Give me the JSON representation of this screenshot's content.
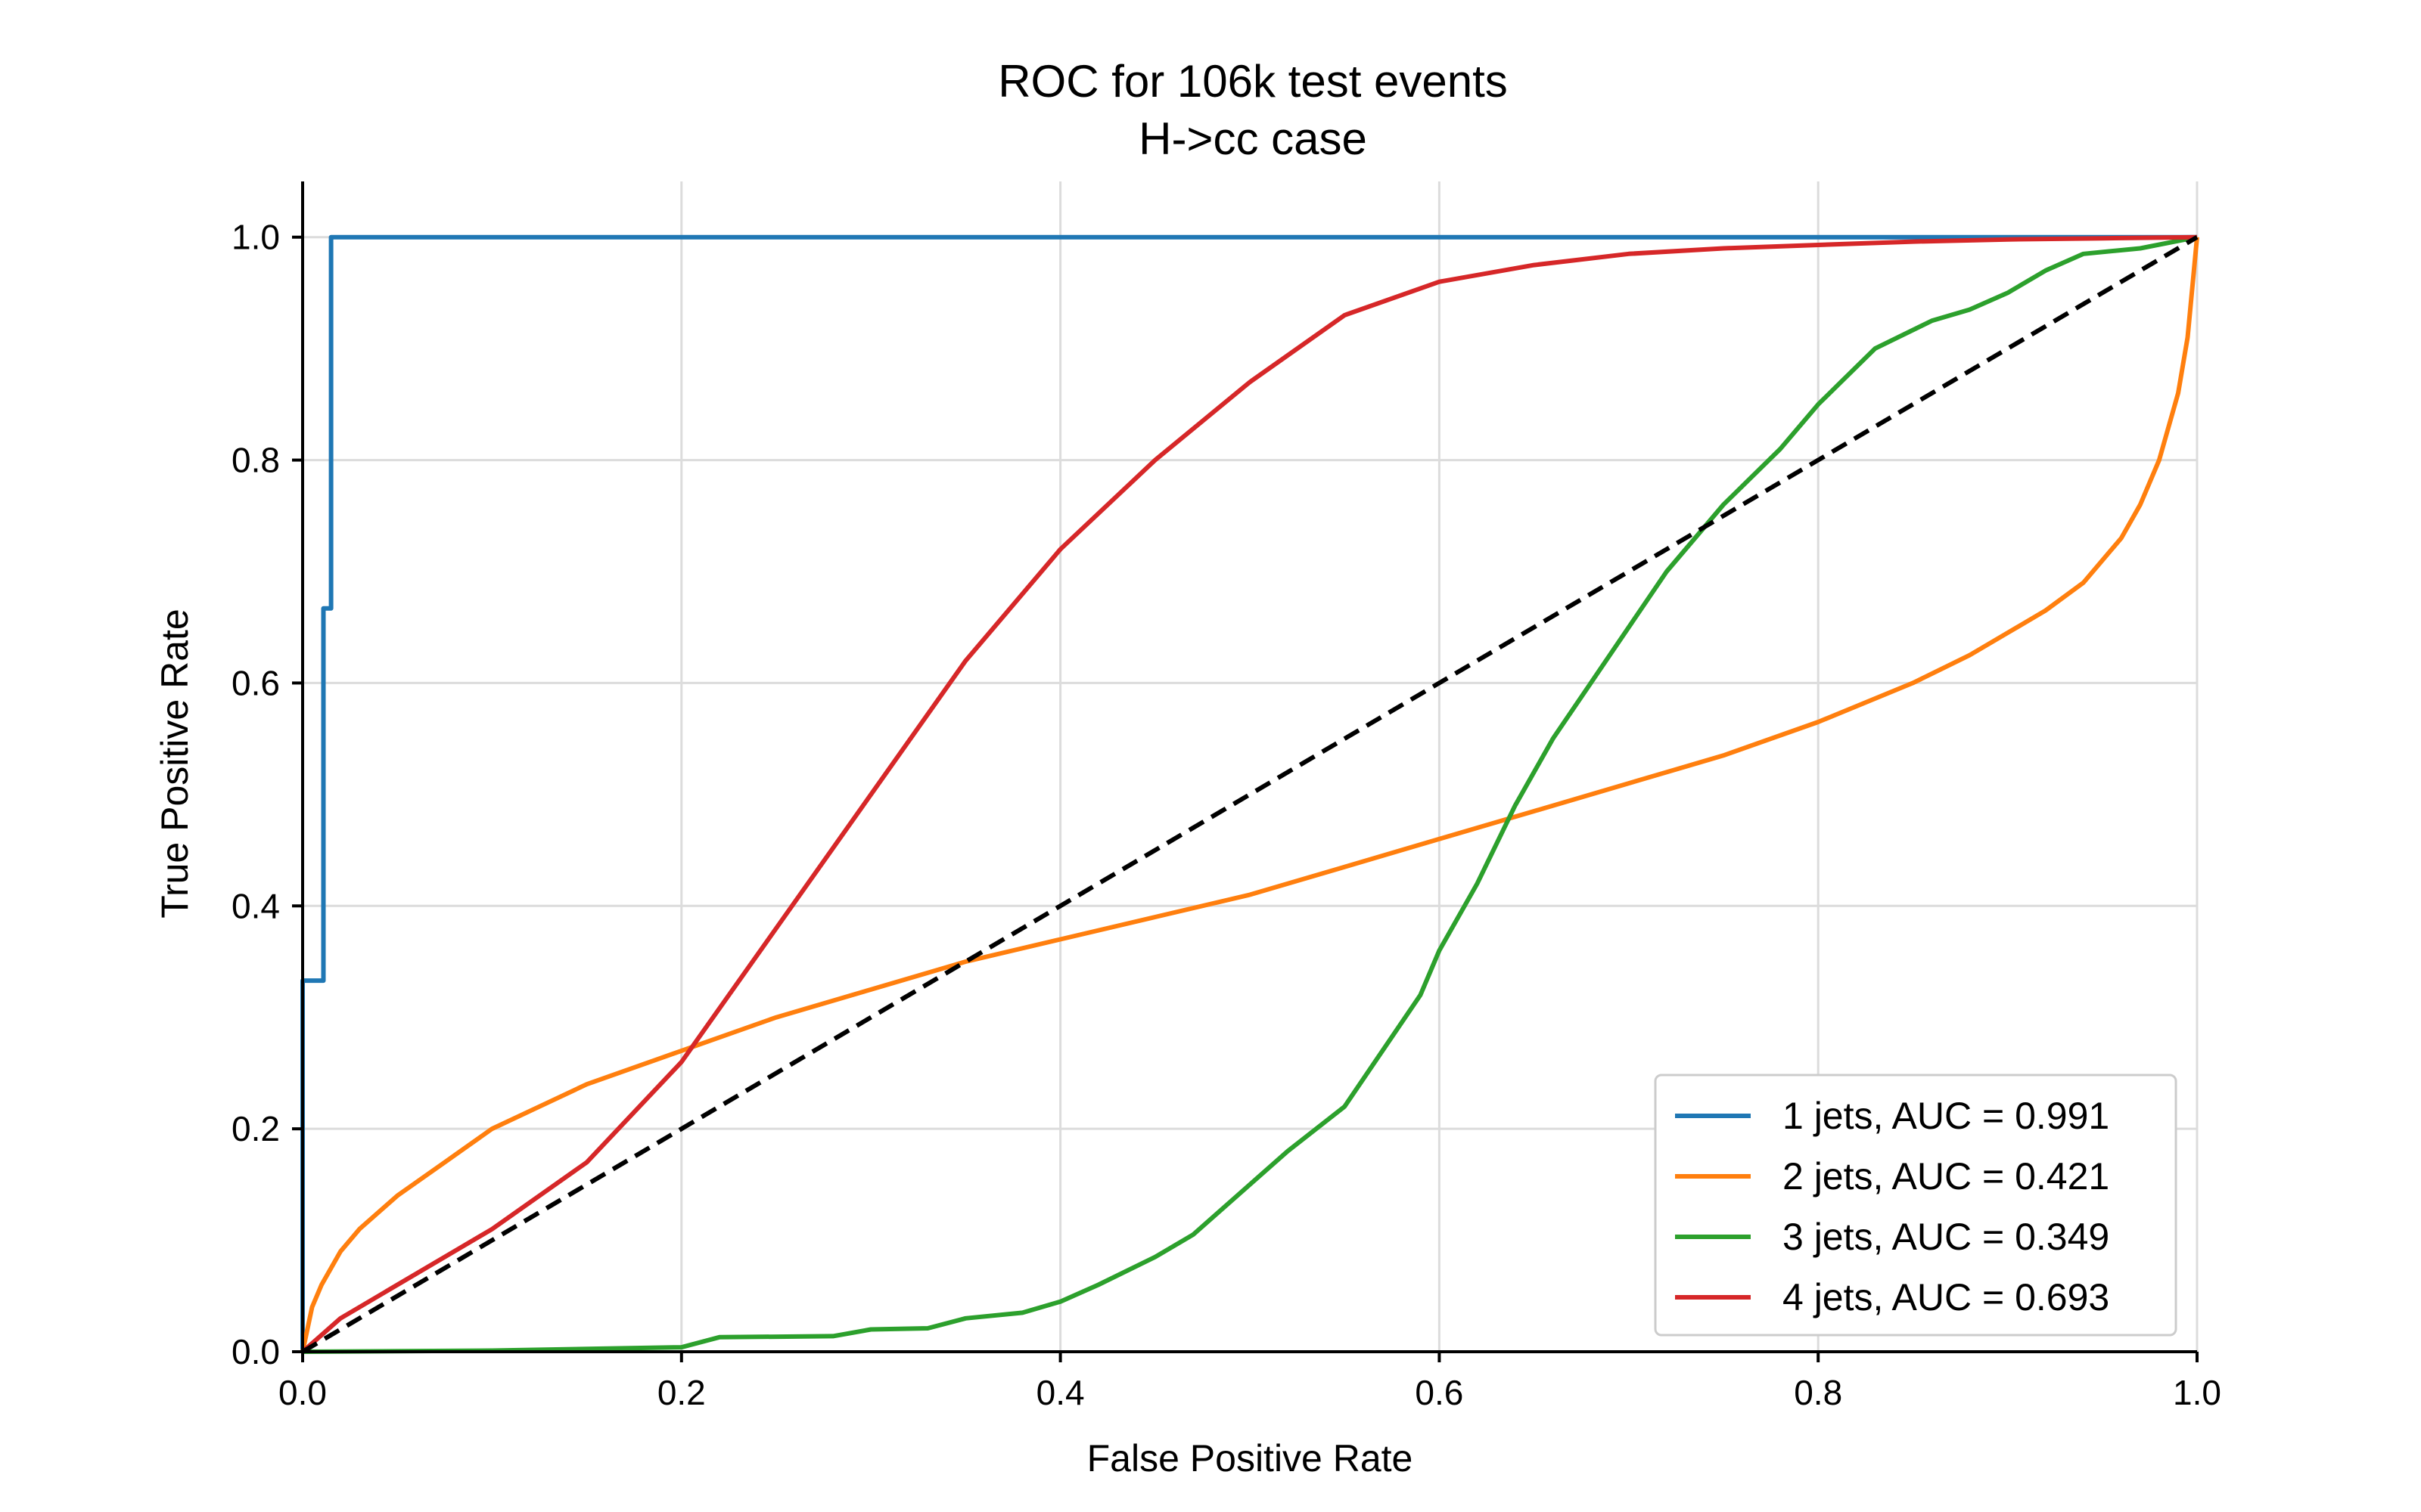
{
  "chart_data": {
    "type": "line",
    "title": "ROC for 106k test events",
    "subtitle": "H->cc case",
    "xlabel": "False Positive Rate",
    "ylabel": "True Positive Rate",
    "xlim": [
      0.0,
      1.0
    ],
    "ylim": [
      0.0,
      1.05
    ],
    "xticks": [
      "0.0",
      "0.2",
      "0.4",
      "0.6",
      "0.8",
      "1.0"
    ],
    "yticks": [
      "0.0",
      "0.2",
      "0.4",
      "0.6",
      "0.8",
      "1.0"
    ],
    "grid": true,
    "legend_position": "lower-right",
    "series": [
      {
        "name": "1 jets, AUC = 0.991",
        "color": "#1f77b4",
        "style": "solid",
        "step": true,
        "x": [
          0.0,
          0.0,
          0.011,
          0.011,
          0.015,
          0.015,
          1.0
        ],
        "y": [
          0.0,
          0.333,
          0.333,
          0.667,
          0.667,
          1.0,
          1.0
        ]
      },
      {
        "name": "2 jets, AUC = 0.421",
        "color": "#ff7f0e",
        "style": "solid",
        "step": false,
        "x": [
          0.0,
          0.005,
          0.01,
          0.02,
          0.03,
          0.05,
          0.075,
          0.1,
          0.125,
          0.15,
          0.2,
          0.25,
          0.3,
          0.35,
          0.4,
          0.45,
          0.5,
          0.55,
          0.6,
          0.65,
          0.7,
          0.75,
          0.8,
          0.85,
          0.88,
          0.9,
          0.92,
          0.94,
          0.96,
          0.97,
          0.98,
          0.99,
          0.995,
          1.0
        ],
        "y": [
          0.0,
          0.04,
          0.06,
          0.09,
          0.11,
          0.14,
          0.17,
          0.2,
          0.22,
          0.24,
          0.27,
          0.3,
          0.325,
          0.35,
          0.37,
          0.39,
          0.41,
          0.435,
          0.46,
          0.485,
          0.51,
          0.535,
          0.565,
          0.6,
          0.625,
          0.645,
          0.665,
          0.69,
          0.73,
          0.76,
          0.8,
          0.86,
          0.91,
          1.0
        ]
      },
      {
        "name": "3 jets, AUC = 0.349",
        "color": "#2ca02c",
        "style": "solid",
        "step": false,
        "x": [
          0.0,
          0.1,
          0.2,
          0.22,
          0.28,
          0.3,
          0.33,
          0.35,
          0.38,
          0.4,
          0.42,
          0.45,
          0.47,
          0.5,
          0.52,
          0.55,
          0.57,
          0.59,
          0.6,
          0.62,
          0.64,
          0.66,
          0.68,
          0.7,
          0.72,
          0.75,
          0.78,
          0.8,
          0.83,
          0.86,
          0.88,
          0.9,
          0.92,
          0.94,
          0.97,
          1.0
        ],
        "y": [
          0.0,
          0.001,
          0.004,
          0.013,
          0.014,
          0.02,
          0.021,
          0.03,
          0.035,
          0.045,
          0.06,
          0.085,
          0.105,
          0.15,
          0.18,
          0.22,
          0.27,
          0.32,
          0.36,
          0.42,
          0.49,
          0.55,
          0.6,
          0.65,
          0.7,
          0.76,
          0.81,
          0.85,
          0.9,
          0.925,
          0.935,
          0.95,
          0.97,
          0.985,
          0.99,
          1.0
        ]
      },
      {
        "name": "4 jets, AUC = 0.693",
        "color": "#d62728",
        "style": "solid",
        "step": false,
        "x": [
          0.0,
          0.02,
          0.05,
          0.1,
          0.15,
          0.2,
          0.25,
          0.3,
          0.35,
          0.4,
          0.45,
          0.5,
          0.55,
          0.6,
          0.65,
          0.7,
          0.75,
          0.8,
          0.85,
          0.9,
          0.95,
          1.0
        ],
        "y": [
          0.0,
          0.03,
          0.06,
          0.11,
          0.17,
          0.26,
          0.38,
          0.5,
          0.62,
          0.72,
          0.8,
          0.87,
          0.93,
          0.96,
          0.975,
          0.985,
          0.99,
          0.993,
          0.996,
          0.998,
          0.999,
          1.0
        ]
      },
      {
        "name": "",
        "color": "#000000",
        "style": "dashed",
        "step": false,
        "x": [
          0.0,
          1.0
        ],
        "y": [
          0.0,
          1.0
        ]
      }
    ]
  }
}
